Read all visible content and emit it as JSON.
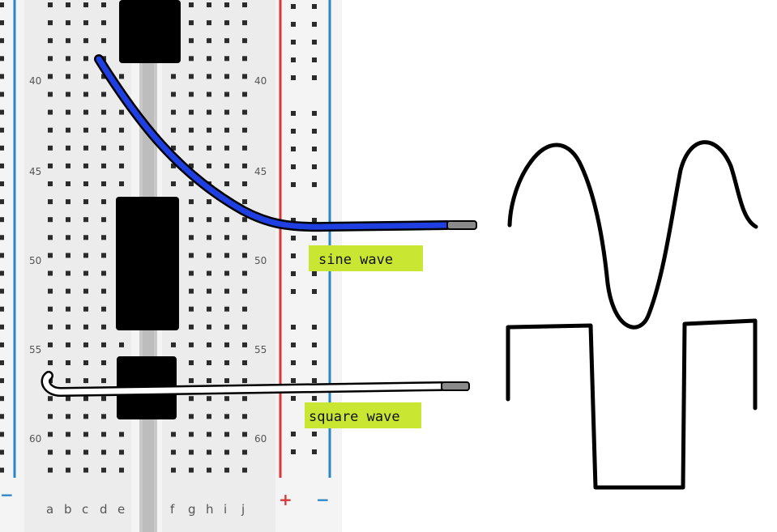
{
  "breadboard": {
    "row_numbers": [
      "40",
      "45",
      "50",
      "55",
      "60"
    ],
    "column_letters_left": [
      "a",
      "b",
      "c",
      "d",
      "e"
    ],
    "column_letters_right": [
      "f",
      "g",
      "h",
      "i",
      "j"
    ],
    "rail_plus": "+",
    "rail_minus": "−"
  },
  "labels": {
    "sine": "sine wave",
    "square": "square wave"
  },
  "colors": {
    "board": "#ececec",
    "hole": "#2b2b2b",
    "rail_red": "#d9383a",
    "rail_blue": "#2a86c8",
    "sine_wire": "#1f3fe0",
    "square_wire": "#ffffff",
    "tag": "#c8e632",
    "ic": "#000000"
  }
}
